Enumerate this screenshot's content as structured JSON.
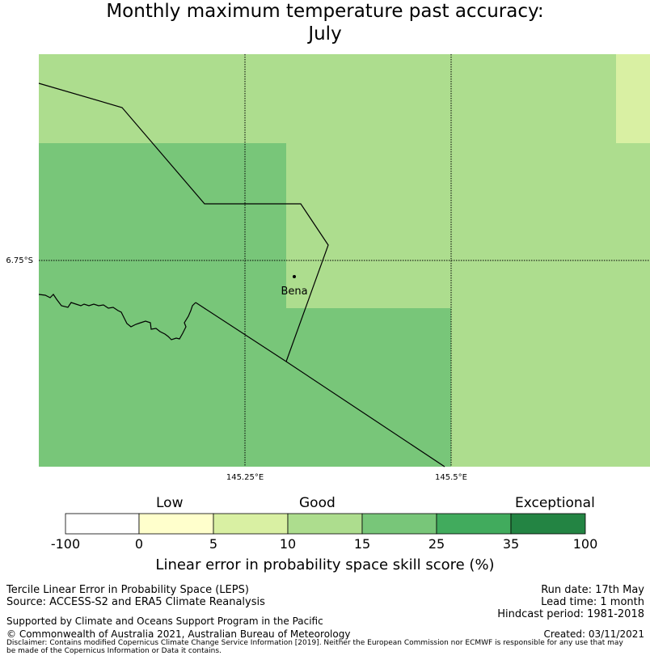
{
  "title": {
    "line1": "Monthly maximum temperature past accuracy:",
    "line2": "July"
  },
  "map": {
    "place_label": "Bena",
    "lat_label": "6.75°S",
    "lon_labels": [
      "145.25°E",
      "145.5°E"
    ],
    "category_colors": {
      "lt0": "#ffffff",
      "0to5": "#ffffcc",
      "5to10": "#d9f0a3",
      "10to15": "#addd8e",
      "15to25": "#78c679",
      "25to35": "#41ab5d",
      "35to100": "#238443"
    }
  },
  "colorbar": {
    "category_labels": [
      "Low",
      "Good",
      "Exceptional"
    ],
    "ticks": [
      "-100",
      "0",
      "5",
      "10",
      "15",
      "25",
      "35",
      "100"
    ],
    "title": "Linear error in probability space skill score (%)"
  },
  "footer": {
    "left1": "Tercile Linear Error in Probability Space (LEPS)",
    "left2": "Source: ACCESS-S2 and ERA5 Climate Reanalysis",
    "support": "Supported by Climate and Oceans Support Program in the Pacific",
    "copyright": "© Commonwealth of Australia 2021, Australian Bureau of Meteorology",
    "disclaimer1": "Disclaimer: Contains modified Copernicus Climate Change Service Information [2019]. Neither the European Commission nor ECMWF is responsible for any use that may",
    "disclaimer2": "be made of the Copernicus Information or Data it contains.",
    "run_date": "Run date: 17th May",
    "lead_time": "Lead time: 1 month",
    "hindcast": "Hindcast period: 1981-2018",
    "created": "Created: 03/11/2021"
  }
}
